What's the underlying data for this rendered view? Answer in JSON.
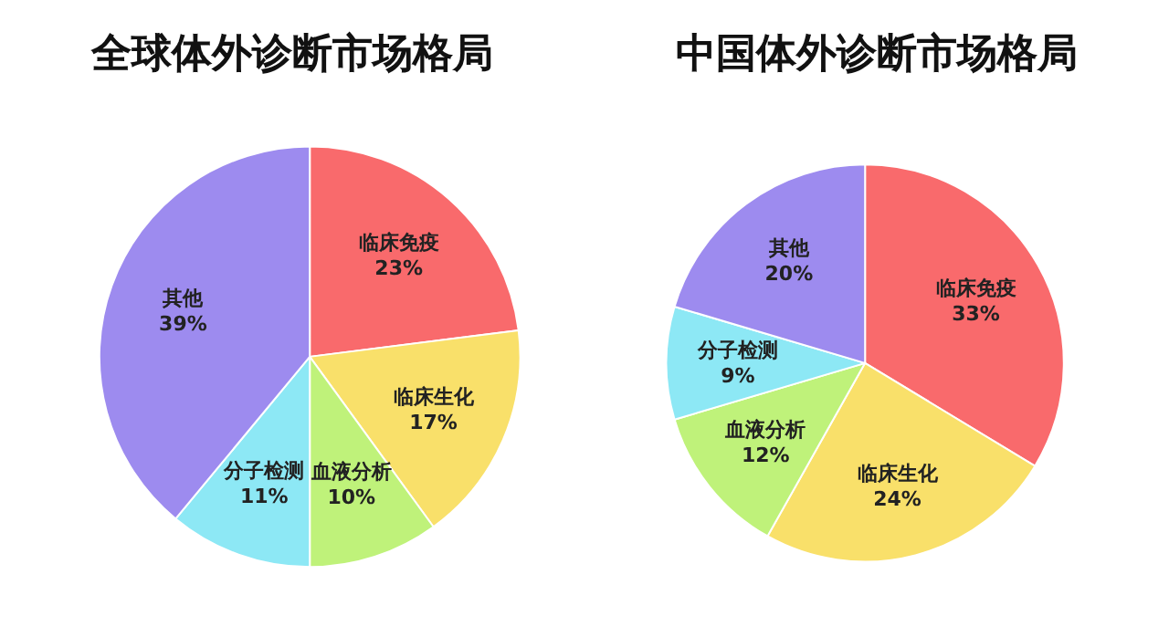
{
  "chart_data": [
    {
      "type": "pie",
      "title": "全球体外诊断市场格局",
      "categories": [
        "临床免疫",
        "临床生化",
        "血液分析",
        "分子检测",
        "其他"
      ],
      "values": [
        23,
        17,
        10,
        11,
        39
      ],
      "value_labels": [
        "23%",
        "17%",
        "10%",
        "11%",
        "39%"
      ],
      "colors": [
        "#f96a6c",
        "#f9e06a",
        "#bff27a",
        "#8de8f5",
        "#9d8bef"
      ]
    },
    {
      "type": "pie",
      "title": "中国体外诊断市场格局",
      "categories": [
        "临床免疫",
        "临床生化",
        "血液分析",
        "分子检测",
        "其他"
      ],
      "values": [
        33,
        24,
        12,
        9,
        20
      ],
      "value_labels": [
        "33%",
        "24%",
        "12%",
        "9%",
        "20%"
      ],
      "colors": [
        "#f96a6c",
        "#f9e06a",
        "#bff27a",
        "#8de8f5",
        "#9d8bef"
      ]
    }
  ]
}
